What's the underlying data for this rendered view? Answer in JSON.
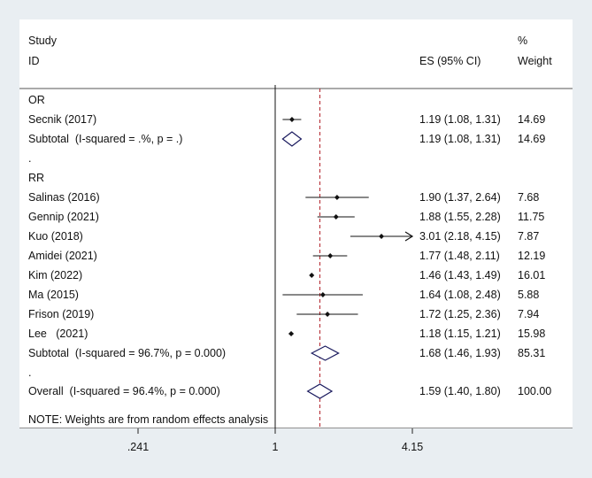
{
  "header": {
    "study": "Study",
    "id": "ID",
    "es": "ES (95% CI)",
    "weight_pct": "%",
    "weight": "Weight"
  },
  "groups": [
    {
      "name": "OR",
      "studies": [
        {
          "study": "Secnik (2017)",
          "es": 1.19,
          "lo": 1.08,
          "hi": 1.31,
          "es_text": "1.19 (1.08, 1.31)",
          "weight": "14.69"
        }
      ],
      "subtotal": {
        "label": "Subtotal  (I-squared = .%, p = .)",
        "es": 1.19,
        "lo": 1.08,
        "hi": 1.31,
        "es_text": "1.19 (1.08, 1.31)",
        "weight": "14.69"
      }
    },
    {
      "name": "RR",
      "studies": [
        {
          "study": "Salinas (2016)",
          "es": 1.9,
          "lo": 1.37,
          "hi": 2.64,
          "es_text": "1.90 (1.37, 2.64)",
          "weight": "7.68"
        },
        {
          "study": "Gennip (2021)",
          "es": 1.88,
          "lo": 1.55,
          "hi": 2.28,
          "es_text": "1.88 (1.55, 2.28)",
          "weight": "11.75"
        },
        {
          "study": "Kuo (2018)",
          "es": 3.01,
          "lo": 2.18,
          "hi": 4.15,
          "es_text": "3.01 (2.18, 4.15)",
          "weight": "7.87",
          "arrow": true
        },
        {
          "study": "Amidei (2021)",
          "es": 1.77,
          "lo": 1.48,
          "hi": 2.11,
          "es_text": "1.77 (1.48, 2.11)",
          "weight": "12.19"
        },
        {
          "study": "Kim (2022)",
          "es": 1.46,
          "lo": 1.43,
          "hi": 1.49,
          "es_text": "1.46 (1.43, 1.49)",
          "weight": "16.01"
        },
        {
          "study": "Ma (2015)",
          "es": 1.64,
          "lo": 1.08,
          "hi": 2.48,
          "es_text": "1.64 (1.08, 2.48)",
          "weight": "5.88"
        },
        {
          "study": "Frison (2019)",
          "es": 1.72,
          "lo": 1.25,
          "hi": 2.36,
          "es_text": "1.72 (1.25, 2.36)",
          "weight": "7.94"
        },
        {
          "study": "Lee   (2021)",
          "es": 1.18,
          "lo": 1.15,
          "hi": 1.21,
          "es_text": "1.18 (1.15, 1.21)",
          "weight": "15.98"
        }
      ],
      "subtotal": {
        "label": "Subtotal  (I-squared = 96.7%, p = 0.000)",
        "es": 1.68,
        "lo": 1.46,
        "hi": 1.93,
        "es_text": "1.68 (1.46, 1.93)",
        "weight": "85.31"
      }
    }
  ],
  "spacer_dot": ".",
  "overall": {
    "label": "Overall  (I-squared = 96.4%, p = 0.000)",
    "es": 1.59,
    "lo": 1.4,
    "hi": 1.8,
    "es_text": "1.59 (1.40, 1.80)",
    "weight": "100.00"
  },
  "note": "NOTE: Weights are from random effects analysis",
  "chart_data": {
    "type": "forest",
    "scale": "log",
    "xlim": [
      0.241,
      4.15
    ],
    "reference_line": 1,
    "overall_line": 1.59,
    "ticks": [
      {
        "value": 0.241,
        "label": ".241"
      },
      {
        "value": 1,
        "label": "1"
      },
      {
        "value": 4.15,
        "label": "4.15"
      }
    ]
  }
}
